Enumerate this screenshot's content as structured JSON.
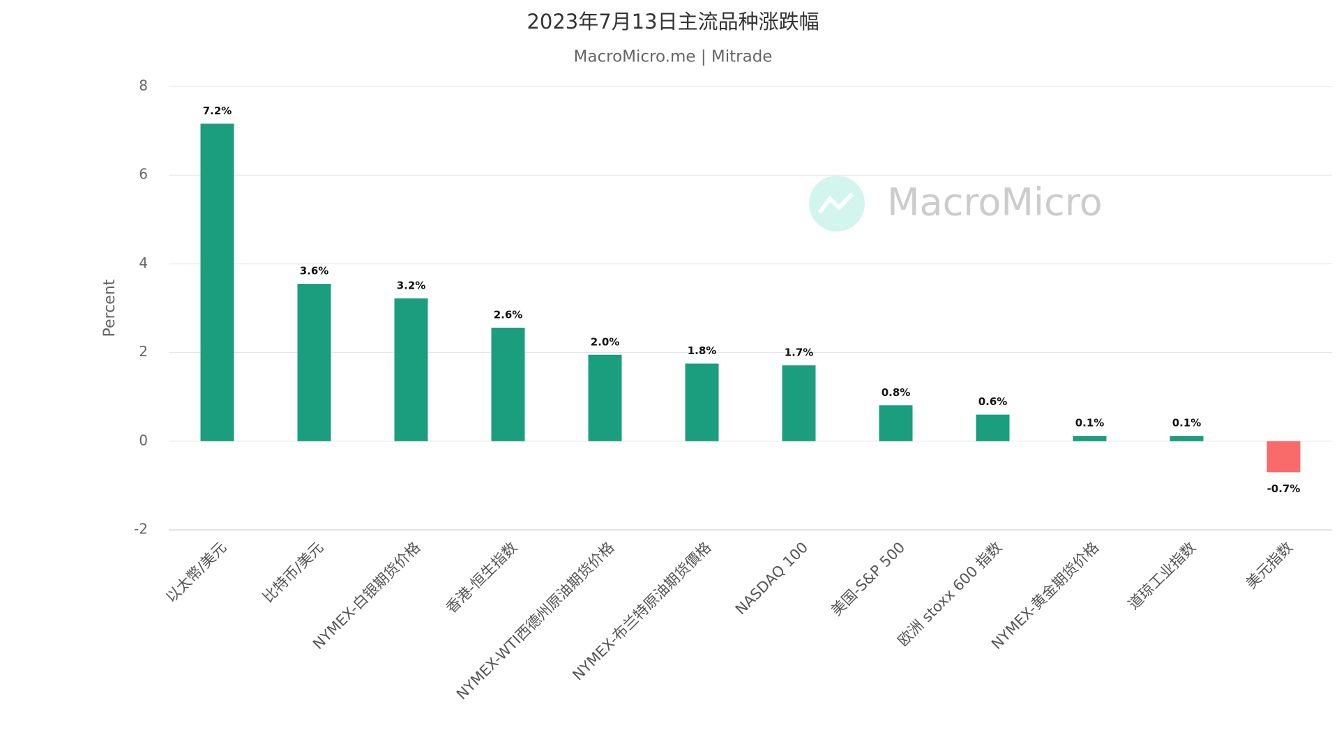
{
  "chart_data": {
    "type": "bar",
    "title": "2023年7月13日主流品种涨跌幅",
    "subtitle": "MacroMicro.me | Mitrade",
    "watermark": "MacroMicro",
    "y_label": "Percent",
    "categories": [
      "以太幣/美元",
      "比特币/美元",
      "NYMEX-白银期货价格",
      "香港-恒生指数",
      "NYMEX-WTI西德州原油期货价格",
      "NYMEX-布兰特原油期货價格",
      "NASDAQ 100",
      "美国-S&P 500",
      "欧洲 stoxx 600 指数",
      "NYMEX-黄金期货价格",
      "道琼工业指数",
      "美元指数"
    ],
    "values": [
      7.16,
      3.55,
      3.22,
      2.56,
      1.95,
      1.75,
      1.71,
      0.81,
      0.6,
      0.12,
      0.12,
      -0.7
    ],
    "value_labels": [
      "7.2%",
      "3.6%",
      "3.2%",
      "2.6%",
      "2.0%",
      "1.8%",
      "1.7%",
      "0.8%",
      "0.6%",
      "0.1%",
      "0.1%",
      "-0.7%"
    ],
    "colors": [
      "#1b9e7d",
      "#1b9e7d",
      "#1b9e7d",
      "#1b9e7d",
      "#1b9e7d",
      "#1b9e7d",
      "#1b9e7d",
      "#1b9e7d",
      "#1b9e7d",
      "#1b9e7d",
      "#1b9e7d",
      "#f96a6a"
    ],
    "ylim": [
      -2,
      8
    ],
    "yticks": [
      -2,
      0,
      2,
      4,
      6,
      8
    ],
    "grid": true
  }
}
